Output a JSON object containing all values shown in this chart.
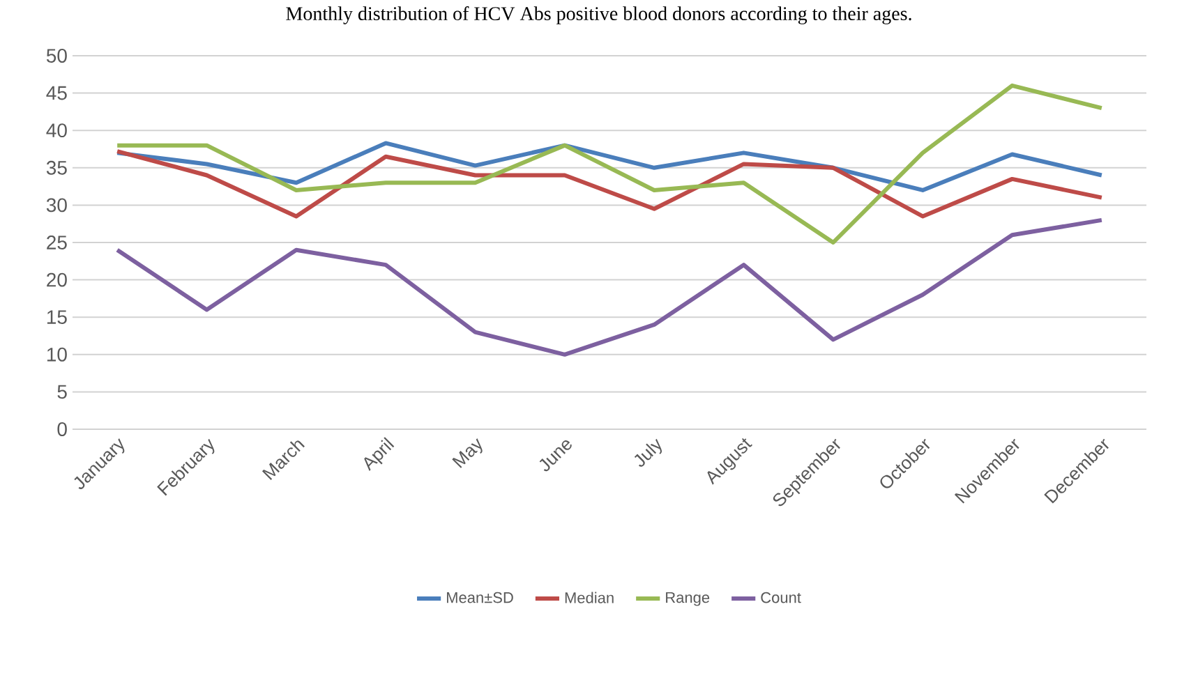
{
  "chart_data": {
    "type": "line",
    "title": "Monthly distribution of HCV Abs positive blood donors according to their ages.",
    "categories": [
      "January",
      "February",
      "March",
      "April",
      "May",
      "June",
      "July",
      "August",
      "September",
      "October",
      "November",
      "December"
    ],
    "series": [
      {
        "name": "Mean±SD",
        "color": "#4a7ebb",
        "values": [
          37,
          35.5,
          33,
          38.3,
          35.3,
          38,
          35,
          37,
          35,
          32,
          36.8,
          34
        ]
      },
      {
        "name": "Median",
        "color": "#be4b48",
        "values": [
          37.2,
          34,
          28.5,
          36.5,
          34,
          34,
          29.5,
          35.5,
          35,
          28.5,
          33.5,
          31
        ]
      },
      {
        "name": "Range",
        "color": "#98b954",
        "values": [
          38,
          38,
          32,
          33,
          33,
          38,
          32,
          33,
          25,
          37,
          46,
          43
        ]
      },
      {
        "name": "Count",
        "color": "#7d60a0",
        "values": [
          24,
          16,
          24,
          22,
          13,
          10,
          14,
          22,
          12,
          18,
          26,
          28
        ]
      }
    ],
    "ylim": [
      0,
      50
    ],
    "yticks": [
      0,
      5,
      10,
      15,
      20,
      25,
      30,
      35,
      40,
      45,
      50
    ],
    "grid": "y",
    "legend": "bottom",
    "marker": "none",
    "line_style": "solid"
  }
}
